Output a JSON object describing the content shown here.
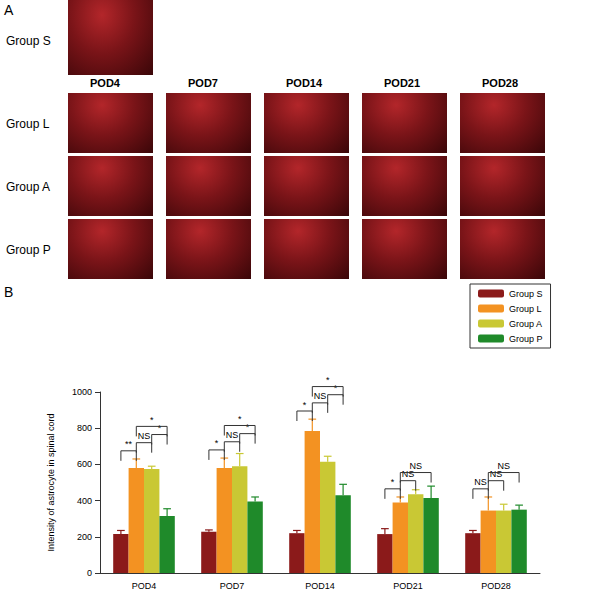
{
  "chart_data": {
    "type": "bar",
    "y_label": "Intensity of astrocyte in spinal cord",
    "categories": [
      "POD4",
      "POD7",
      "POD14",
      "POD21",
      "POD28"
    ],
    "series": [
      {
        "name": "Group S",
        "color": "#8b1a1a",
        "values": [
          215,
          228,
          220,
          215,
          220
        ],
        "errors": [
          20,
          10,
          15,
          30,
          15
        ]
      },
      {
        "name": "Group L",
        "color": "#f39222",
        "values": [
          580,
          580,
          785,
          390,
          345
        ],
        "errors": [
          50,
          55,
          65,
          30,
          75
        ]
      },
      {
        "name": "Group A",
        "color": "#c9c834",
        "values": [
          575,
          590,
          615,
          435,
          345
        ],
        "errors": [
          15,
          70,
          30,
          25,
          35
        ]
      },
      {
        "name": "Group P",
        "color": "#1f8a2a",
        "values": [
          315,
          395,
          430,
          415,
          350
        ],
        "errors": [
          40,
          25,
          60,
          65,
          25
        ]
      }
    ],
    "ylim": [
      0,
      1000
    ],
    "yticks": [
      0,
      200,
      400,
      600,
      800,
      1000
    ],
    "grid": false,
    "legend": "upper right",
    "significance": [
      {
        "category": "POD4",
        "from": "Group S",
        "to": "Group L",
        "label": "**"
      },
      {
        "category": "POD4",
        "from": "Group L",
        "to": "Group A",
        "label": "NS"
      },
      {
        "category": "POD4",
        "from": "Group A",
        "to": "Group P",
        "label": "*"
      },
      {
        "category": "POD4",
        "from": "Group L",
        "to": "Group P",
        "label": "*"
      },
      {
        "category": "POD7",
        "from": "Group S",
        "to": "Group L",
        "label": "*"
      },
      {
        "category": "POD7",
        "from": "Group L",
        "to": "Group A",
        "label": "NS"
      },
      {
        "category": "POD7",
        "from": "Group A",
        "to": "Group P",
        "label": "*"
      },
      {
        "category": "POD7",
        "from": "Group L",
        "to": "Group P",
        "label": "*"
      },
      {
        "category": "POD14",
        "from": "Group S",
        "to": "Group L",
        "label": "*"
      },
      {
        "category": "POD14",
        "from": "Group L",
        "to": "Group A",
        "label": "NS"
      },
      {
        "category": "POD14",
        "from": "Group A",
        "to": "Group P",
        "label": "*"
      },
      {
        "category": "POD14",
        "from": "Group L",
        "to": "Group P",
        "label": "*"
      },
      {
        "category": "POD21",
        "from": "Group S",
        "to": "Group L",
        "label": "*"
      },
      {
        "category": "POD21",
        "from": "Group L",
        "to": "Group A",
        "label": "NS"
      },
      {
        "category": "POD21",
        "from": "Group L",
        "to": "Group P",
        "label": "NS"
      },
      {
        "category": "POD28",
        "from": "Group S",
        "to": "Group L",
        "label": "NS"
      },
      {
        "category": "POD28",
        "from": "Group L",
        "to": "Group A",
        "label": "NS"
      },
      {
        "category": "POD28",
        "from": "Group L",
        "to": "Group P",
        "label": "NS"
      }
    ]
  },
  "figure": {
    "panel_labels": [
      "A",
      "B"
    ],
    "image_columns": [
      "POD4",
      "POD7",
      "POD14",
      "POD21",
      "POD28"
    ],
    "image_rows": [
      "Group S",
      "Group L",
      "Group A",
      "Group P"
    ]
  }
}
